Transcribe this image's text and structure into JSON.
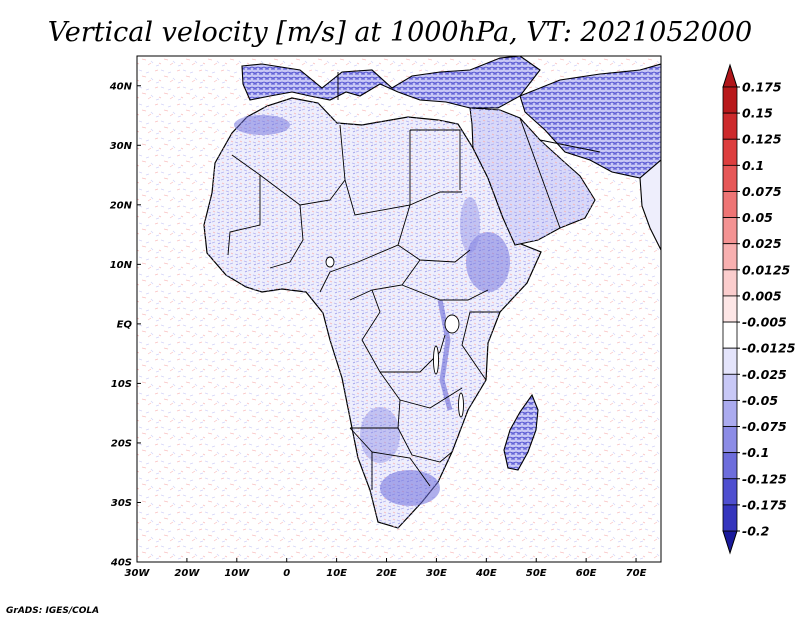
{
  "title": "Vertical velocity [m/s] at 1000hPa, VT: 2021052000",
  "credit": "GrADS: IGES/COLA",
  "map": {
    "projection": "latlon",
    "lon_range": [
      -30,
      75
    ],
    "lat_range": [
      -40,
      45
    ],
    "lon_ticks": [
      {
        "value": -30,
        "label": "30W"
      },
      {
        "value": -20,
        "label": "20W"
      },
      {
        "value": -10,
        "label": "10W"
      },
      {
        "value": 0,
        "label": "0"
      },
      {
        "value": 10,
        "label": "10E"
      },
      {
        "value": 20,
        "label": "20E"
      },
      {
        "value": 30,
        "label": "30E"
      },
      {
        "value": 40,
        "label": "40E"
      },
      {
        "value": 50,
        "label": "50E"
      },
      {
        "value": 60,
        "label": "60E"
      },
      {
        "value": 70,
        "label": "70E"
      }
    ],
    "lat_ticks": [
      {
        "value": 40,
        "label": "40N"
      },
      {
        "value": 30,
        "label": "30N"
      },
      {
        "value": 20,
        "label": "20N"
      },
      {
        "value": 10,
        "label": "10N"
      },
      {
        "value": 0,
        "label": "EQ"
      },
      {
        "value": -10,
        "label": "10S"
      },
      {
        "value": -20,
        "label": "20S"
      },
      {
        "value": -30,
        "label": "30S"
      },
      {
        "value": -40,
        "label": "40S"
      }
    ]
  },
  "colorbar": {
    "levels": [
      {
        "label": "0.175",
        "color": "#b8191b"
      },
      {
        "label": "0.15",
        "color": "#cd2a2c"
      },
      {
        "label": "0.125",
        "color": "#dd3e3e"
      },
      {
        "label": "0.1",
        "color": "#e65757"
      },
      {
        "label": "0.075",
        "color": "#ee7575"
      },
      {
        "label": "0.05",
        "color": "#f49393"
      },
      {
        "label": "0.025",
        "color": "#f8b0b0"
      },
      {
        "label": "0.0125",
        "color": "#fbcdcd"
      },
      {
        "label": "0.005",
        "color": "#fde6e6"
      },
      {
        "label": "-0.005",
        "color": "#ffffff"
      },
      {
        "label": "-0.0125",
        "color": "#e4e4fb"
      },
      {
        "label": "-0.025",
        "color": "#c8c8f6"
      },
      {
        "label": "-0.05",
        "color": "#ababef"
      },
      {
        "label": "-0.075",
        "color": "#8c8ce6"
      },
      {
        "label": "-0.1",
        "color": "#6d6ddc"
      },
      {
        "label": "-0.125",
        "color": "#4f4fd0"
      },
      {
        "label": "-0.175",
        "color": "#3535bd"
      },
      {
        "label": "-0.2",
        "color": "#1f1fa8"
      }
    ],
    "top_color": "#b0161a",
    "bottom_color": "#1a1a9c"
  },
  "regions": [
    {
      "name": "north-africa-coast",
      "color": "#6d6ddc"
    },
    {
      "name": "arabian-peninsula",
      "color": "#8c8ce6"
    },
    {
      "name": "iran-plateau",
      "color": "#4f4fd0"
    },
    {
      "name": "ethiopian-highlands",
      "color": "#6d6ddc"
    },
    {
      "name": "southern-africa",
      "color": "#8c8ce6"
    },
    {
      "name": "madagascar",
      "color": "#6d6ddc"
    }
  ]
}
